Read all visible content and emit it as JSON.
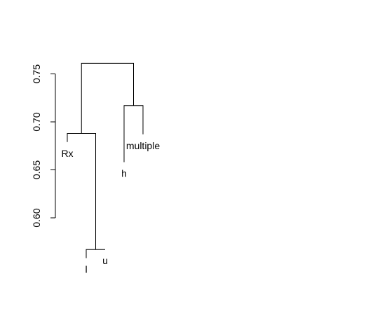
{
  "chart_data": {
    "type": "dendrogram",
    "title": "",
    "xlabel": "",
    "ylabel": "",
    "y_axis": {
      "ticks": [
        0.6,
        0.65,
        0.7,
        0.75
      ],
      "tick_labels": [
        "0.60",
        "0.65",
        "0.70",
        "0.75"
      ],
      "range": [
        0.6,
        0.75
      ]
    },
    "leaves": [
      {
        "label": "Rx",
        "height": 0.679
      },
      {
        "label": "l",
        "height": 0.558
      },
      {
        "label": "u",
        "height": 0.567
      },
      {
        "label": "h",
        "height": 0.658
      },
      {
        "label": "multiple",
        "height": 0.687
      }
    ],
    "merges": [
      {
        "children": [
          "l",
          "u"
        ],
        "height": 0.567
      },
      {
        "children": [
          "Rx",
          "l+u"
        ],
        "height": 0.688
      },
      {
        "children": [
          "h",
          "multiple"
        ],
        "height": 0.717
      },
      {
        "children": [
          "Rx+l+u",
          "h+multiple"
        ],
        "height": 0.761
      }
    ]
  }
}
